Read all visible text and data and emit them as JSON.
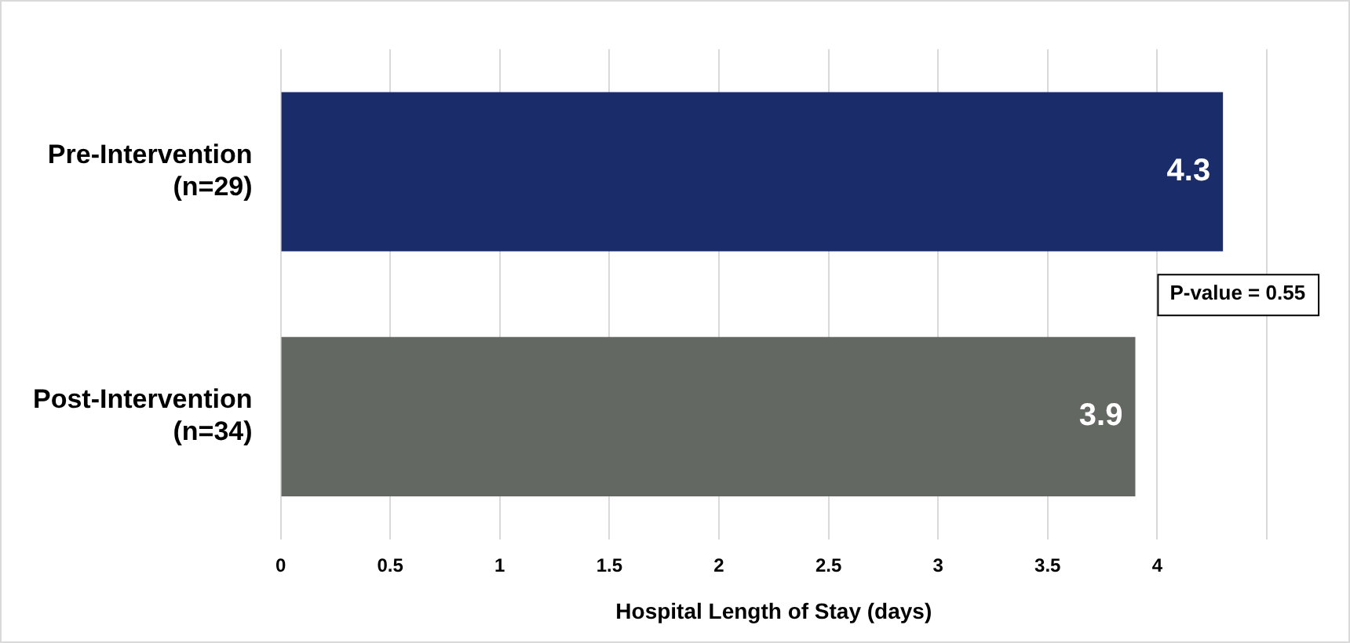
{
  "chart_data": {
    "type": "bar",
    "orientation": "horizontal",
    "categories": [
      "Pre-Intervention\n(n=29)",
      "Post-Intervention\n(n=34)"
    ],
    "values": [
      4.3,
      3.9
    ],
    "colors": [
      "#1b2c6b",
      "#636862"
    ],
    "xlabel": "Hospital Length of Stay (days)",
    "xlim": [
      0,
      4.5
    ],
    "xticks": [
      0,
      0.5,
      1,
      1.5,
      2,
      2.5,
      3,
      3.5,
      4,
      {
        "value": 4.5,
        "label": null
      }
    ],
    "grid": "x",
    "legend": false,
    "data_labels": true,
    "annotations": [
      "P-value = 0.55"
    ]
  }
}
